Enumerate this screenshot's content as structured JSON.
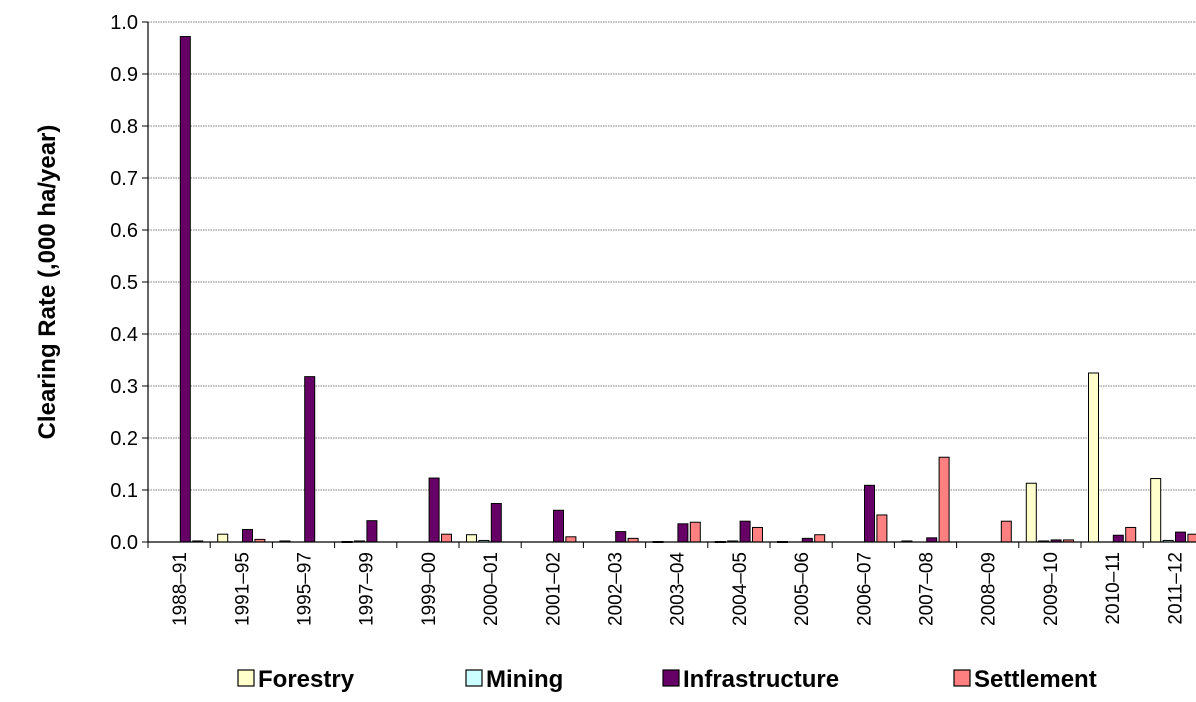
{
  "chart_data": {
    "type": "bar",
    "title": "",
    "xlabel": "",
    "ylabel": "Clearing Rate (,000 ha/year)",
    "ylim": [
      0,
      1.0
    ],
    "yticks": [
      "0.0",
      "0.1",
      "0.2",
      "0.3",
      "0.4",
      "0.5",
      "0.6",
      "0.7",
      "0.8",
      "0.9",
      "1.0"
    ],
    "grid": true,
    "legend_position": "bottom",
    "categories": [
      "1988–91",
      "1991–95",
      "1995–97",
      "1997–99",
      "1999–00",
      "2000–01",
      "2001–02",
      "2002–03",
      "2003–04",
      "2004–05",
      "2005–06",
      "2006–07",
      "2007–08",
      "2008–09",
      "2009–10",
      "2010–11",
      "2011–12"
    ],
    "series": [
      {
        "name": "Forestry",
        "color": "#ffffcc",
        "values": [
          0,
          0.015,
          0.002,
          0.001,
          0,
          0.014,
          0,
          0,
          0.001,
          0.001,
          0.001,
          0,
          0.002,
          0,
          0.113,
          0.325,
          0.122
        ]
      },
      {
        "name": "Mining",
        "color": "#ccffff",
        "values": [
          0,
          0,
          0,
          0.002,
          0,
          0.003,
          0,
          0,
          0,
          0.002,
          0,
          0,
          0,
          0,
          0.002,
          0,
          0.003
        ]
      },
      {
        "name": "Infrastructure",
        "color": "#660066",
        "values": [
          0.972,
          0.024,
          0.318,
          0.041,
          0.123,
          0.074,
          0.061,
          0.02,
          0.035,
          0.04,
          0.007,
          0.109,
          0.008,
          0,
          0.004,
          0.013,
          0.019
        ]
      },
      {
        "name": "Settlement",
        "color": "#ff8080",
        "values": [
          0.002,
          0.005,
          0,
          0,
          0.015,
          0,
          0.01,
          0.007,
          0.038,
          0.028,
          0.014,
          0.052,
          0.163,
          0.04,
          0.004,
          0.028,
          0.015
        ]
      }
    ]
  }
}
